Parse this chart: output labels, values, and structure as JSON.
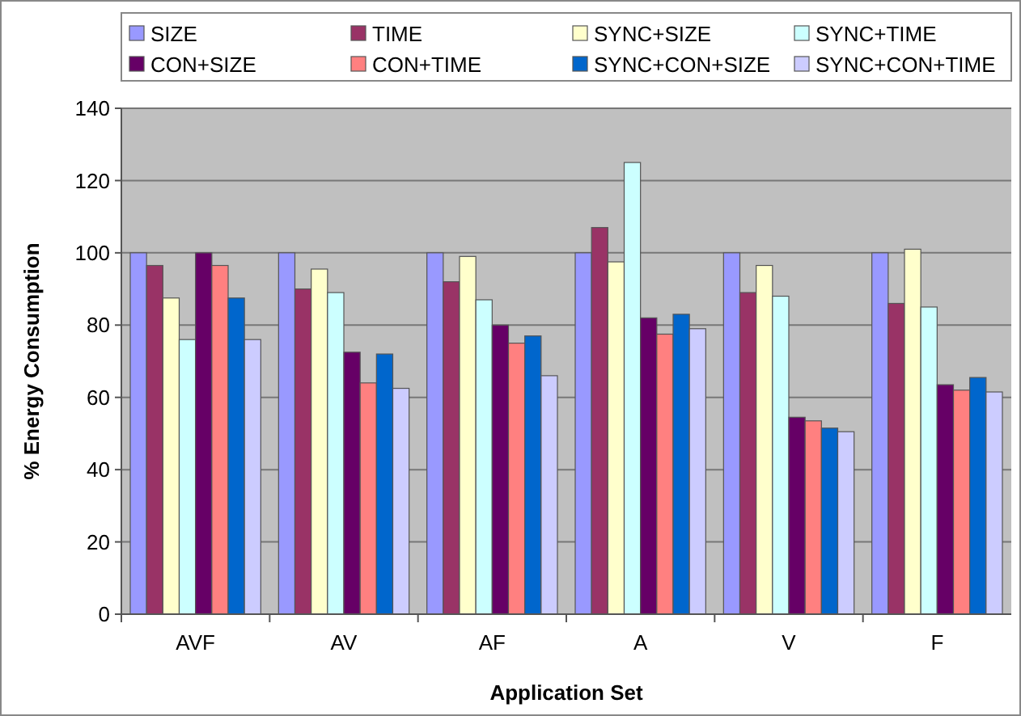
{
  "chart_data": {
    "type": "bar",
    "xlabel": "Application Set",
    "ylabel": "% Energy Consumption",
    "categories": [
      "AVF",
      "AV",
      "AF",
      "A",
      "V",
      "F"
    ],
    "series": [
      {
        "name": "SIZE",
        "color": "#9999ff",
        "values": [
          100,
          100,
          100,
          100,
          100,
          100
        ]
      },
      {
        "name": "TIME",
        "color": "#993366",
        "values": [
          96.5,
          90,
          92,
          107,
          89,
          86
        ]
      },
      {
        "name": "SYNC+SIZE",
        "color": "#ffffcc",
        "values": [
          87.5,
          95.5,
          99,
          97.5,
          96.5,
          101
        ]
      },
      {
        "name": "SYNC+TIME",
        "color": "#ccffff",
        "values": [
          76,
          89,
          87,
          125,
          88,
          85
        ]
      },
      {
        "name": "CON+SIZE",
        "color": "#660066",
        "values": [
          100,
          72.5,
          80,
          82,
          54.5,
          63.5
        ]
      },
      {
        "name": "CON+TIME",
        "color": "#ff8080",
        "values": [
          96.5,
          64,
          75,
          77.5,
          53.5,
          62
        ]
      },
      {
        "name": "SYNC+CON+SIZE",
        "color": "#0066cc",
        "values": [
          87.5,
          72,
          77,
          83,
          51.5,
          65.5
        ]
      },
      {
        "name": "SYNC+CON+TIME",
        "color": "#ccccff",
        "values": [
          76,
          62.5,
          66,
          79,
          50.5,
          61.5
        ]
      }
    ],
    "ylim": [
      0,
      140
    ],
    "yticks": [
      0,
      20,
      40,
      60,
      80,
      100,
      120,
      140
    ],
    "grid": "y",
    "legend": "top"
  }
}
